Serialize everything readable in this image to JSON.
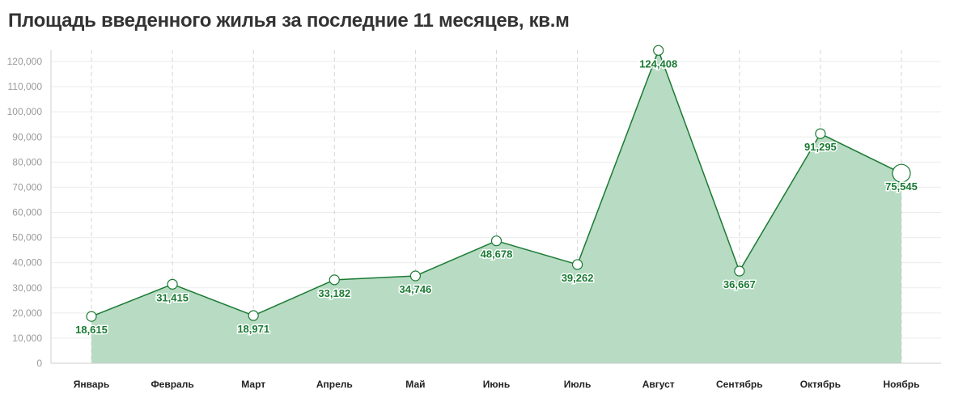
{
  "chart_data": {
    "type": "area",
    "title": "Площадь введенного жилья за последние 11 месяцев, кв.м",
    "xlabel": "",
    "ylabel": "",
    "categories": [
      "Январь",
      "Февраль",
      "Март",
      "Апрель",
      "Май",
      "Июнь",
      "Июль",
      "Август",
      "Сентябрь",
      "Октябрь",
      "Ноябрь"
    ],
    "series": [
      {
        "values": [
          18615,
          31415,
          18971,
          33182,
          34746,
          48678,
          39262,
          124408,
          36667,
          91295,
          75545
        ],
        "labels": [
          "18,615",
          "31,415",
          "18,971",
          "33,182",
          "34,746",
          "48,678",
          "39,262",
          "124,408",
          "36,667",
          "91,295",
          "75,545"
        ]
      }
    ],
    "ylim": [
      0,
      120000
    ],
    "yticks": [
      0,
      10000,
      20000,
      30000,
      40000,
      50000,
      60000,
      70000,
      80000,
      90000,
      100000,
      110000,
      120000
    ],
    "ytick_labels": [
      "0",
      "10,000",
      "20,000",
      "30,000",
      "40,000",
      "50,000",
      "60,000",
      "70,000",
      "80,000",
      "90,000",
      "100,000",
      "110,000",
      "120,000"
    ],
    "grid": true,
    "legend": "none",
    "colors": {
      "line": "#1a7a33",
      "fill": "#b7dbc3",
      "grid": "#ebebeb",
      "vgrid": "#d6d6d6"
    }
  }
}
